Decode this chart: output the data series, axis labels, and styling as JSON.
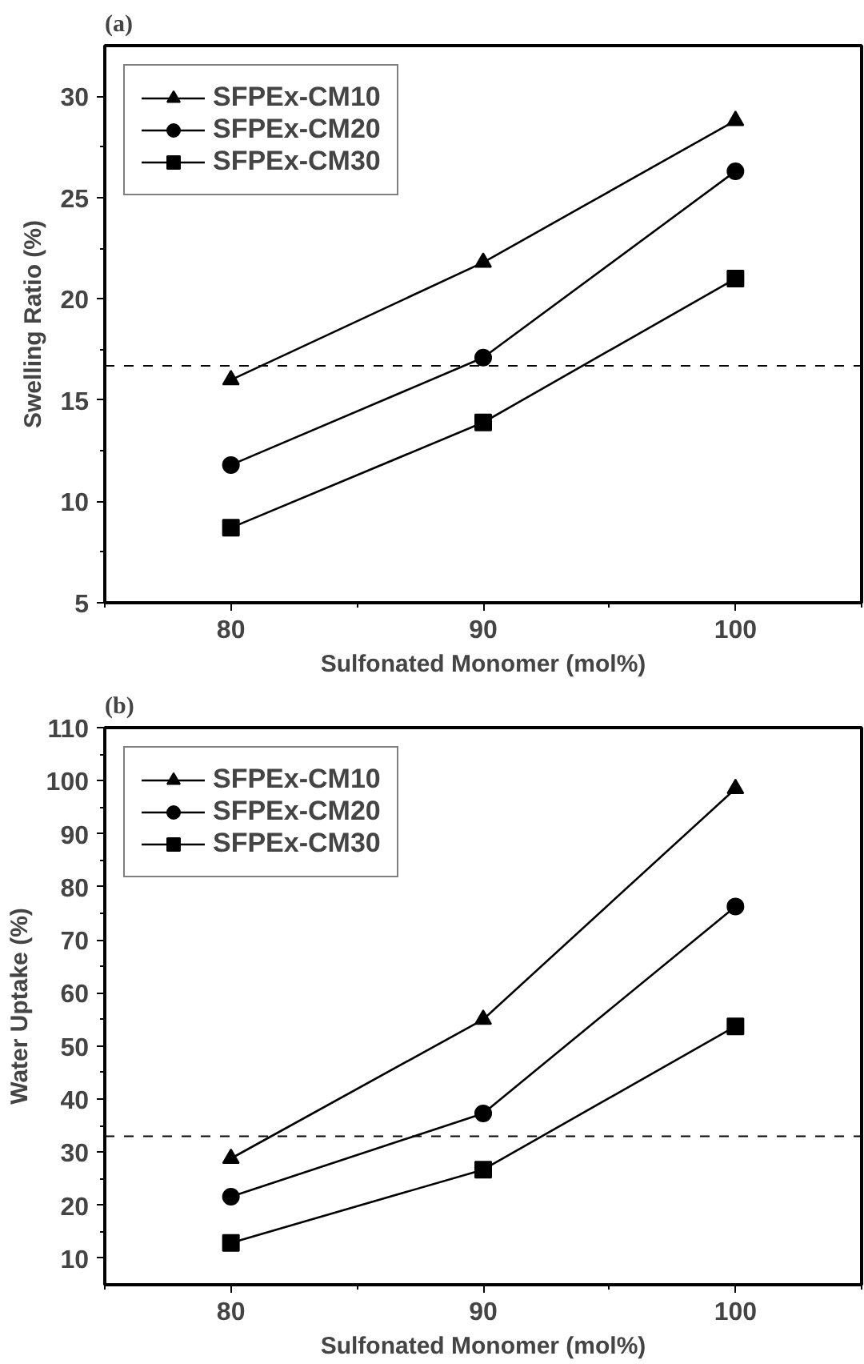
{
  "chart_data": [
    {
      "type": "line",
      "title": "(a)",
      "xlabel": "Sulfonated Monomer (mol%)",
      "ylabel": "Swelling Ratio (%)",
      "x": [
        80,
        90,
        100
      ],
      "xlim": [
        75,
        105
      ],
      "xticks": [
        80,
        90,
        100
      ],
      "ylim": [
        5,
        32.5
      ],
      "yticks": [
        5,
        10,
        15,
        20,
        25,
        30
      ],
      "grid": false,
      "legend": "top left",
      "line_style": "solid",
      "series": [
        {
          "name": "SFPEx-CM10",
          "color": "#000000",
          "marker": "triangle",
          "values": [
            16.0,
            21.8,
            28.8
          ]
        },
        {
          "name": "SFPEx-CM20",
          "color": "#000000",
          "marker": "circle",
          "values": [
            11.8,
            17.1,
            26.3
          ]
        },
        {
          "name": "SFPEx-CM30",
          "color": "#000000",
          "marker": "square",
          "values": [
            8.7,
            13.9,
            21.0
          ]
        }
      ],
      "ref_lines": [
        {
          "axis": "y",
          "value": 16.7,
          "color": "#000000",
          "line_style": "dashed"
        }
      ]
    },
    {
      "type": "line",
      "title": "(b)",
      "xlabel": "Sulfonated Monomer (mol%)",
      "ylabel": "Water Uptake (%)",
      "x": [
        80,
        90,
        100
      ],
      "xlim": [
        75,
        105
      ],
      "xticks": [
        80,
        90,
        100
      ],
      "ylim": [
        5,
        110
      ],
      "yticks": [
        10,
        20,
        30,
        40,
        50,
        60,
        70,
        80,
        90,
        100,
        110
      ],
      "grid": false,
      "legend": "top left",
      "line_style": "solid",
      "series": [
        {
          "name": "SFPEx-CM10",
          "color": "#000000",
          "marker": "triangle",
          "values": [
            28.8,
            55.0,
            98.5
          ]
        },
        {
          "name": "SFPEx-CM20",
          "color": "#000000",
          "marker": "circle",
          "values": [
            21.6,
            37.3,
            76.3
          ]
        },
        {
          "name": "SFPEx-CM30",
          "color": "#000000",
          "marker": "square",
          "values": [
            12.9,
            26.7,
            53.7
          ]
        }
      ],
      "ref_lines": [
        {
          "axis": "y",
          "value": 33.0,
          "color": "#000000",
          "line_style": "dashed"
        }
      ]
    }
  ]
}
